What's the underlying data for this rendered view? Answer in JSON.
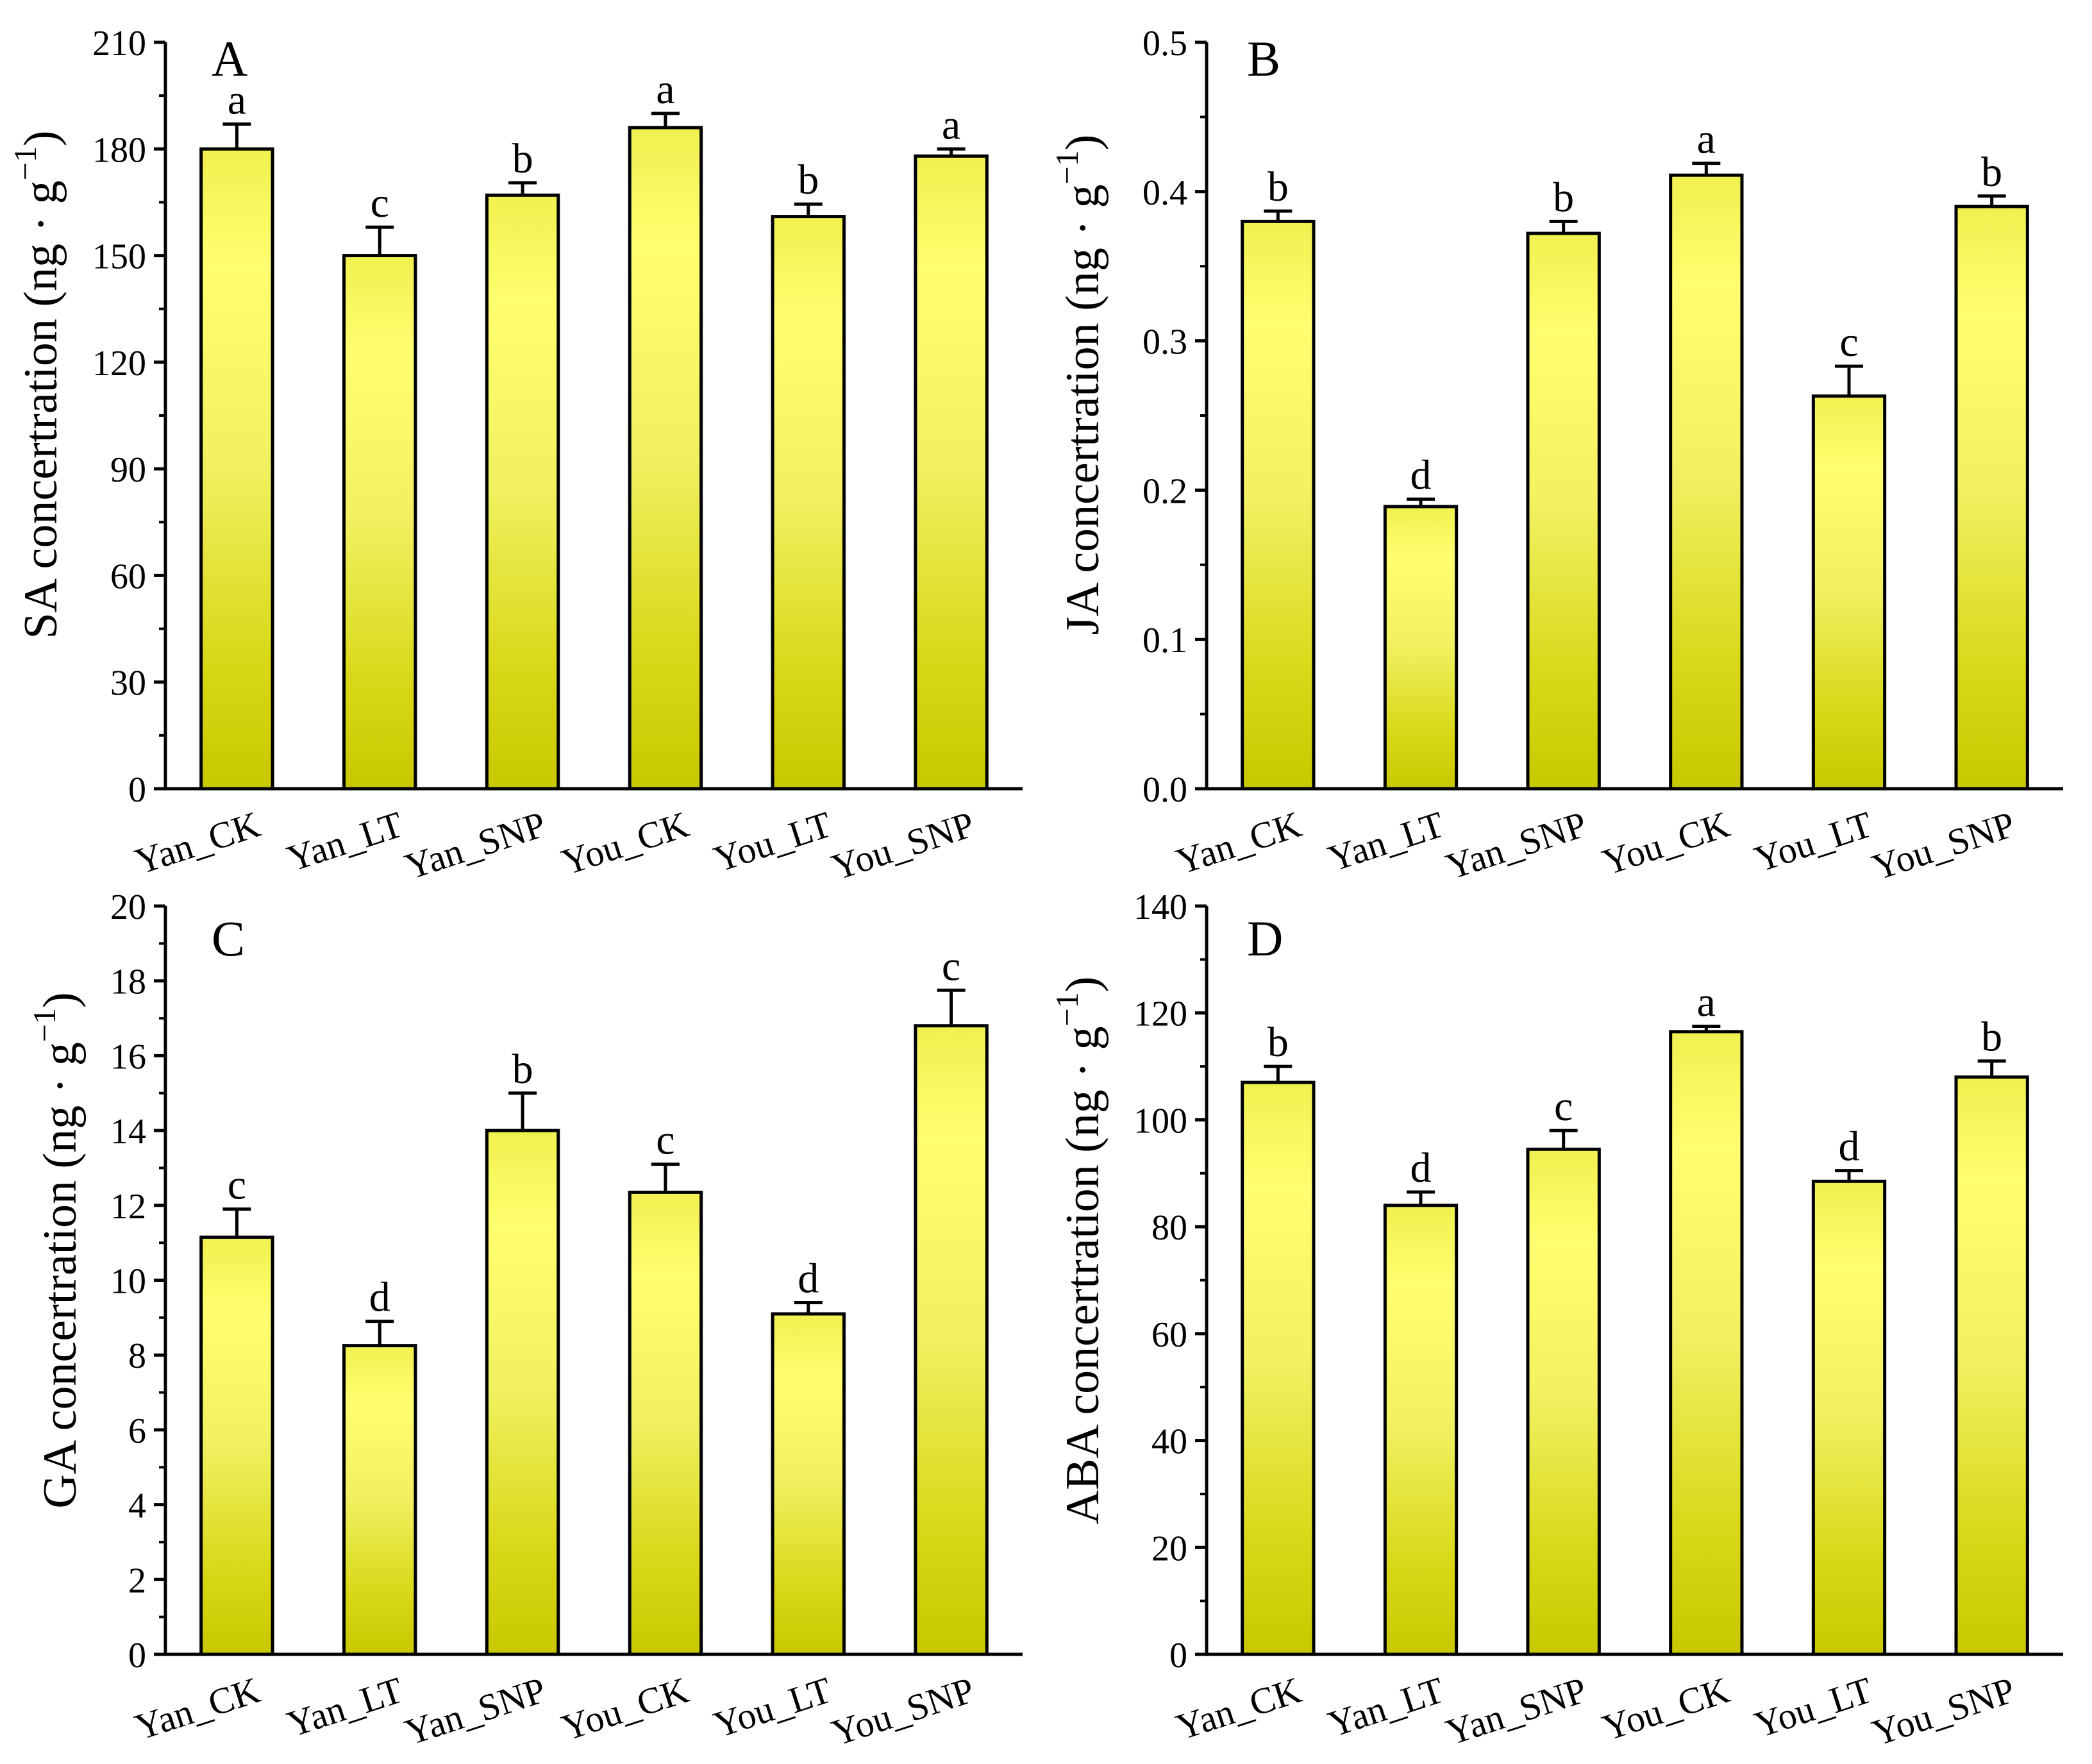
{
  "colors": {
    "bar_top": "#ffff70",
    "bar_bottom": "#c8c800",
    "axis": "#000000"
  },
  "categories": [
    "Yan_CK",
    "Yan_LT",
    "Yan_SNP",
    "You_CK",
    "You_LT",
    "You_SNP"
  ],
  "chart_data": [
    {
      "panel": "A",
      "type": "bar",
      "title": "",
      "ylabel": "SA concertration (ng · g",
      "ylabel_sup": "−1",
      "ylabel_close": ")",
      "xlabel": "",
      "categories": [
        "Yan_CK",
        "Yan_LT",
        "Yan_SNP",
        "You_CK",
        "You_LT",
        "You_SNP"
      ],
      "values": [
        180,
        150,
        167,
        186,
        161,
        178
      ],
      "errors": [
        7,
        8,
        3.5,
        4,
        3.5,
        2
      ],
      "letters": [
        "a",
        "c",
        "b",
        "a",
        "b",
        "a"
      ],
      "ylim": [
        0,
        210
      ],
      "yticks": [
        0,
        30,
        60,
        90,
        120,
        150,
        180,
        210
      ],
      "ytick_labels": [
        "0",
        "30",
        "60",
        "90",
        "120",
        "150",
        "180",
        "210"
      ]
    },
    {
      "panel": "B",
      "type": "bar",
      "title": "",
      "ylabel": "JA concertration (ng · g",
      "ylabel_sup": "−1",
      "ylabel_close": ")",
      "xlabel": "",
      "categories": [
        "Yan_CK",
        "Yan_LT",
        "Yan_SNP",
        "You_CK",
        "You_LT",
        "You_SNP"
      ],
      "values": [
        0.38,
        0.189,
        0.372,
        0.411,
        0.263,
        0.39
      ],
      "errors": [
        0.007,
        0.005,
        0.008,
        0.008,
        0.02,
        0.007
      ],
      "letters": [
        "b",
        "d",
        "b",
        "a",
        "c",
        "b"
      ],
      "ylim": [
        0,
        0.5
      ],
      "yticks": [
        0,
        0.1,
        0.2,
        0.3,
        0.4,
        0.5
      ],
      "ytick_labels": [
        "0.0",
        "0.1",
        "0.2",
        "0.3",
        "0.4",
        "0.5"
      ]
    },
    {
      "panel": "C",
      "type": "bar",
      "title": "",
      "ylabel": "GA concertration (ng · g",
      "ylabel_sup": "−1",
      "ylabel_close": ")",
      "xlabel": "",
      "categories": [
        "Yan_CK",
        "Yan_LT",
        "Yan_SNP",
        "You_CK",
        "You_LT",
        "You_SNP"
      ],
      "values": [
        11.15,
        8.25,
        14.0,
        12.35,
        9.1,
        16.8
      ],
      "errors": [
        0.75,
        0.65,
        1.0,
        0.75,
        0.3,
        0.95
      ],
      "letters": [
        "c",
        "d",
        "b",
        "c",
        "d",
        "c"
      ],
      "ylim": [
        0,
        20
      ],
      "yticks": [
        0,
        2,
        4,
        6,
        8,
        10,
        12,
        14,
        16,
        18,
        20
      ],
      "ytick_labels": [
        "0",
        "2",
        "4",
        "6",
        "8",
        "10",
        "12",
        "14",
        "16",
        "18",
        "20"
      ]
    },
    {
      "panel": "D",
      "type": "bar",
      "title": "",
      "ylabel": "ABA concertration (ng · g",
      "ylabel_sup": "−1",
      "ylabel_close": ")",
      "xlabel": "",
      "categories": [
        "Yan_CK",
        "Yan_LT",
        "Yan_SNP",
        "You_CK",
        "You_LT",
        "You_SNP"
      ],
      "values": [
        107,
        84,
        94.5,
        116.5,
        88.5,
        108
      ],
      "errors": [
        3,
        2.5,
        3.5,
        1,
        2,
        3
      ],
      "letters": [
        "b",
        "d",
        "c",
        "a",
        "d",
        "b"
      ],
      "ylim": [
        0,
        140
      ],
      "yticks": [
        0,
        20,
        40,
        60,
        80,
        100,
        120,
        140
      ],
      "ytick_labels": [
        "0",
        "20",
        "40",
        "60",
        "80",
        "100",
        "120",
        "140"
      ]
    }
  ]
}
